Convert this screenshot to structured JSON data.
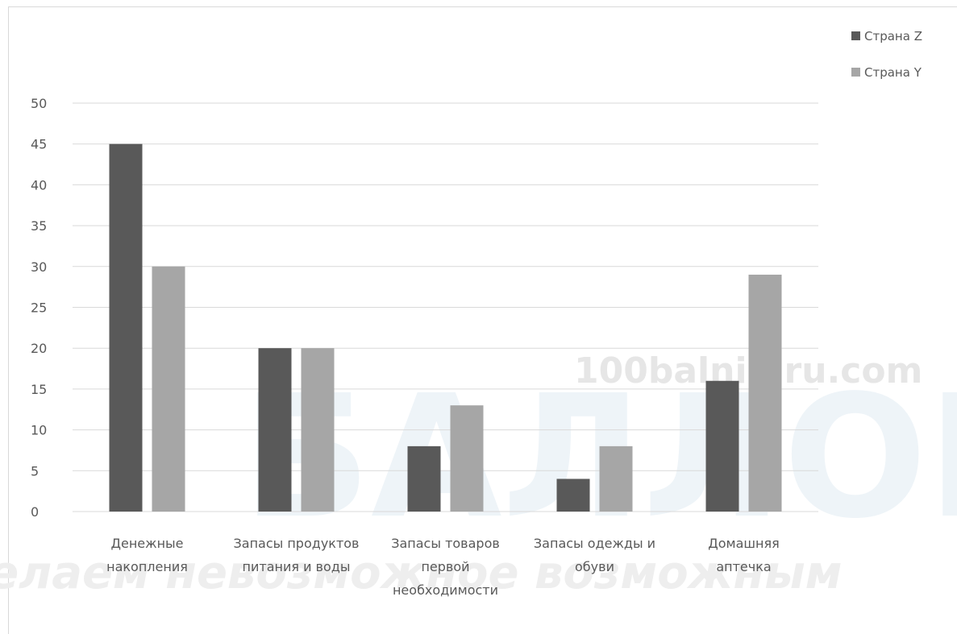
{
  "colors": {
    "series_z": "#595959",
    "series_y": "#a6a6a6",
    "grid": "#d9d9d9",
    "text": "#595959"
  },
  "watermark": {
    "site": "100balnik.ru.com",
    "big": "БАЛЛОВ",
    "slogan": "делаем невозможное возможным"
  },
  "chart_data": {
    "type": "bar",
    "categories": [
      [
        "Денежные",
        "накопления"
      ],
      [
        "Запасы продуктов",
        "питания и воды"
      ],
      [
        "Запасы товаров",
        "первой",
        "необходимости"
      ],
      [
        "Запасы одежды и",
        "обуви"
      ],
      [
        "Домашняя",
        "аптечка"
      ]
    ],
    "series": [
      {
        "name": "Страна Z",
        "values": [
          45,
          20,
          8,
          4,
          16
        ]
      },
      {
        "name": "Страна Y",
        "values": [
          30,
          20,
          13,
          8,
          29
        ]
      }
    ],
    "ylim": [
      0,
      50
    ],
    "yticks": [
      0,
      5,
      10,
      15,
      20,
      25,
      30,
      35,
      40,
      45,
      50
    ],
    "grid": true,
    "legend_position": "top-right"
  }
}
